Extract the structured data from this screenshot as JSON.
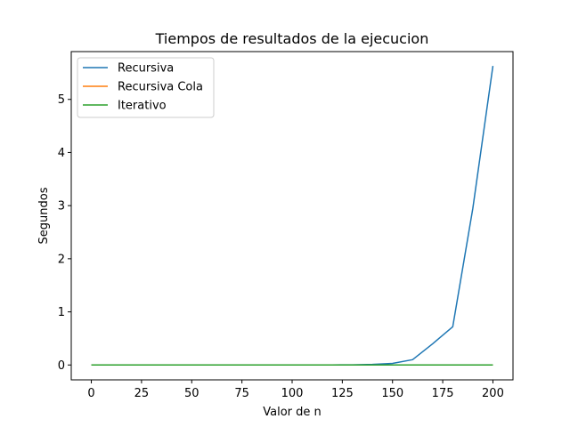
{
  "chart_data": {
    "type": "line",
    "title": "Tiempos de resultados de la ejecucion",
    "xlabel": "Valor de n",
    "ylabel": "Segundos",
    "xlim": [
      -10,
      210
    ],
    "ylim": [
      -0.28,
      5.9
    ],
    "xticks": [
      0,
      25,
      50,
      75,
      100,
      125,
      150,
      175,
      200
    ],
    "yticks": [
      0,
      1,
      2,
      3,
      4,
      5
    ],
    "grid": false,
    "legend_position": "top-left",
    "x": [
      0,
      10,
      20,
      30,
      40,
      50,
      60,
      70,
      80,
      90,
      100,
      110,
      120,
      130,
      140,
      150,
      160,
      170,
      180,
      190,
      200
    ],
    "series": [
      {
        "name": "Recursiva",
        "color": "#1f77b4",
        "values": [
          0,
          0,
          0,
          0,
          0,
          0,
          0,
          0,
          0,
          0,
          0,
          0,
          0.001,
          0.003,
          0.01,
          0.03,
          0.1,
          0.4,
          0.72,
          2.95,
          5.63
        ]
      },
      {
        "name": "Recursiva Cola",
        "color": "#ff7f0e",
        "values": [
          0,
          0,
          0,
          0,
          0,
          0,
          0,
          0,
          0,
          0,
          0,
          0,
          0,
          0,
          0,
          0,
          0,
          0,
          0,
          0,
          0
        ]
      },
      {
        "name": "Iterativo",
        "color": "#2ca02c",
        "values": [
          0,
          0,
          0,
          0,
          0,
          0,
          0,
          0,
          0,
          0,
          0,
          0,
          0,
          0,
          0,
          0,
          0,
          0,
          0,
          0,
          0
        ]
      }
    ]
  }
}
